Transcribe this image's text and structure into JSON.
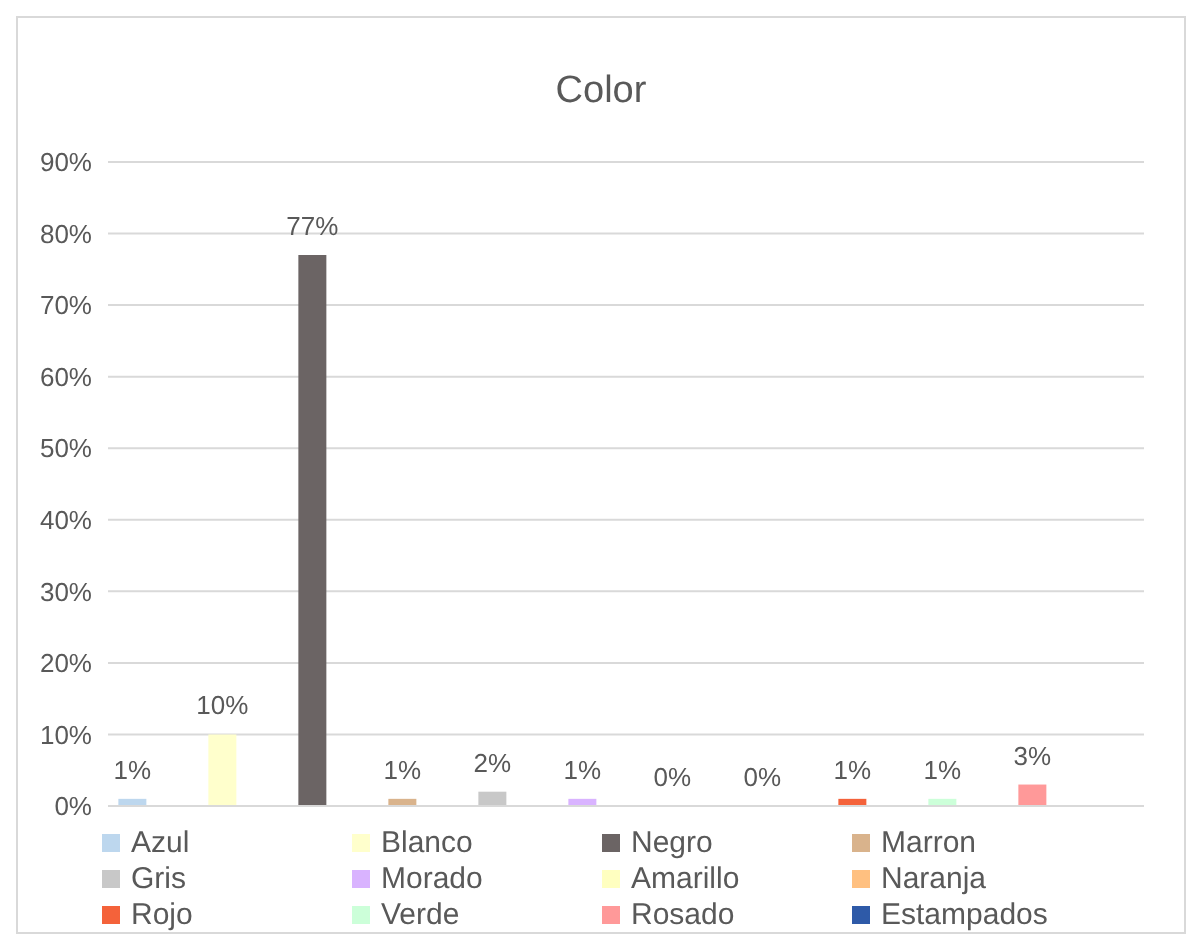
{
  "chart_data": {
    "type": "bar",
    "title": "Color",
    "categories": [
      null
    ],
    "series": [
      {
        "name": "Azul",
        "color": "#bdd7ee",
        "values": [
          1
        ],
        "value_labels": [
          "1%"
        ]
      },
      {
        "name": "Blanco",
        "color": "#ffffcc",
        "values": [
          10
        ],
        "value_labels": [
          "10%"
        ]
      },
      {
        "name": "Negro",
        "color": "#6b6464",
        "values": [
          77
        ],
        "value_labels": [
          "77%"
        ]
      },
      {
        "name": "Marron",
        "color": "#d9b38c",
        "values": [
          1
        ],
        "value_labels": [
          "1%"
        ]
      },
      {
        "name": "Gris",
        "color": "#c8c8c8",
        "values": [
          2
        ],
        "value_labels": [
          "2%"
        ]
      },
      {
        "name": "Morado",
        "color": "#d9b3ff",
        "values": [
          1
        ],
        "value_labels": [
          "1%"
        ]
      },
      {
        "name": "Amarillo",
        "color": "#ffffc0",
        "values": [
          0
        ],
        "value_labels": [
          "0%"
        ]
      },
      {
        "name": "Naranja",
        "color": "#ffc080",
        "values": [
          0
        ],
        "value_labels": [
          "0%"
        ]
      },
      {
        "name": "Rojo",
        "color": "#f4623a",
        "values": [
          1
        ],
        "value_labels": [
          "1%"
        ]
      },
      {
        "name": "Verde",
        "color": "#ccffd9",
        "values": [
          1
        ],
        "value_labels": [
          "1%"
        ]
      },
      {
        "name": "Rosado",
        "color": "#ff9999",
        "values": [
          3
        ],
        "value_labels": [
          "3%"
        ]
      },
      {
        "name": "Estampados",
        "color": "#2e5aa8",
        "values": [
          null
        ],
        "value_labels": [
          null
        ]
      }
    ],
    "ylim": [
      0,
      90
    ],
    "yticks": [
      {
        "value": 0,
        "label": "0%"
      },
      {
        "value": 10,
        "label": "10%"
      },
      {
        "value": 20,
        "label": "20%"
      },
      {
        "value": 30,
        "label": "30%"
      },
      {
        "value": 40,
        "label": "40%"
      },
      {
        "value": 50,
        "label": "50%"
      },
      {
        "value": 60,
        "label": "60%"
      },
      {
        "value": 70,
        "label": "70%"
      },
      {
        "value": 80,
        "label": "80%"
      },
      {
        "value": 90,
        "label": "90%"
      }
    ],
    "grid": "y",
    "legend": "bottom"
  }
}
